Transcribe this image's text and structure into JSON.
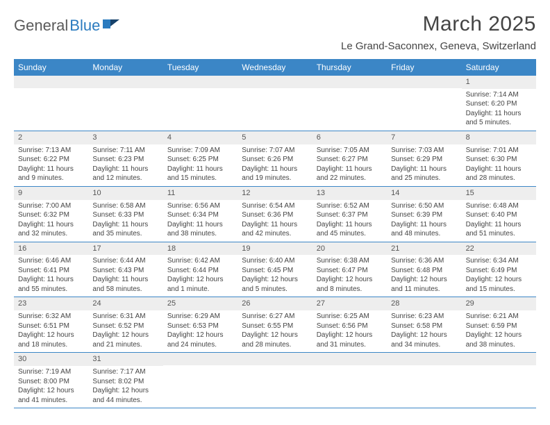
{
  "logo": {
    "text_dark": "General",
    "text_blue": "Blue"
  },
  "title": "March 2025",
  "subtitle": "Le Grand-Saconnex, Geneva, Switzerland",
  "colors": {
    "header_bg": "#3b86c6",
    "header_text": "#ffffff",
    "daynum_bg": "#eeeeee",
    "border": "#3b86c6",
    "text": "#444444",
    "logo_dark": "#5a5a5a",
    "logo_blue": "#2b7bbf"
  },
  "weekdays": [
    "Sunday",
    "Monday",
    "Tuesday",
    "Wednesday",
    "Thursday",
    "Friday",
    "Saturday"
  ],
  "weeks": [
    [
      {
        "n": "",
        "sr": "",
        "ss": "",
        "dl": ""
      },
      {
        "n": "",
        "sr": "",
        "ss": "",
        "dl": ""
      },
      {
        "n": "",
        "sr": "",
        "ss": "",
        "dl": ""
      },
      {
        "n": "",
        "sr": "",
        "ss": "",
        "dl": ""
      },
      {
        "n": "",
        "sr": "",
        "ss": "",
        "dl": ""
      },
      {
        "n": "",
        "sr": "",
        "ss": "",
        "dl": ""
      },
      {
        "n": "1",
        "sr": "Sunrise: 7:14 AM",
        "ss": "Sunset: 6:20 PM",
        "dl": "Daylight: 11 hours and 5 minutes."
      }
    ],
    [
      {
        "n": "2",
        "sr": "Sunrise: 7:13 AM",
        "ss": "Sunset: 6:22 PM",
        "dl": "Daylight: 11 hours and 9 minutes."
      },
      {
        "n": "3",
        "sr": "Sunrise: 7:11 AM",
        "ss": "Sunset: 6:23 PM",
        "dl": "Daylight: 11 hours and 12 minutes."
      },
      {
        "n": "4",
        "sr": "Sunrise: 7:09 AM",
        "ss": "Sunset: 6:25 PM",
        "dl": "Daylight: 11 hours and 15 minutes."
      },
      {
        "n": "5",
        "sr": "Sunrise: 7:07 AM",
        "ss": "Sunset: 6:26 PM",
        "dl": "Daylight: 11 hours and 19 minutes."
      },
      {
        "n": "6",
        "sr": "Sunrise: 7:05 AM",
        "ss": "Sunset: 6:27 PM",
        "dl": "Daylight: 11 hours and 22 minutes."
      },
      {
        "n": "7",
        "sr": "Sunrise: 7:03 AM",
        "ss": "Sunset: 6:29 PM",
        "dl": "Daylight: 11 hours and 25 minutes."
      },
      {
        "n": "8",
        "sr": "Sunrise: 7:01 AM",
        "ss": "Sunset: 6:30 PM",
        "dl": "Daylight: 11 hours and 28 minutes."
      }
    ],
    [
      {
        "n": "9",
        "sr": "Sunrise: 7:00 AM",
        "ss": "Sunset: 6:32 PM",
        "dl": "Daylight: 11 hours and 32 minutes."
      },
      {
        "n": "10",
        "sr": "Sunrise: 6:58 AM",
        "ss": "Sunset: 6:33 PM",
        "dl": "Daylight: 11 hours and 35 minutes."
      },
      {
        "n": "11",
        "sr": "Sunrise: 6:56 AM",
        "ss": "Sunset: 6:34 PM",
        "dl": "Daylight: 11 hours and 38 minutes."
      },
      {
        "n": "12",
        "sr": "Sunrise: 6:54 AM",
        "ss": "Sunset: 6:36 PM",
        "dl": "Daylight: 11 hours and 42 minutes."
      },
      {
        "n": "13",
        "sr": "Sunrise: 6:52 AM",
        "ss": "Sunset: 6:37 PM",
        "dl": "Daylight: 11 hours and 45 minutes."
      },
      {
        "n": "14",
        "sr": "Sunrise: 6:50 AM",
        "ss": "Sunset: 6:39 PM",
        "dl": "Daylight: 11 hours and 48 minutes."
      },
      {
        "n": "15",
        "sr": "Sunrise: 6:48 AM",
        "ss": "Sunset: 6:40 PM",
        "dl": "Daylight: 11 hours and 51 minutes."
      }
    ],
    [
      {
        "n": "16",
        "sr": "Sunrise: 6:46 AM",
        "ss": "Sunset: 6:41 PM",
        "dl": "Daylight: 11 hours and 55 minutes."
      },
      {
        "n": "17",
        "sr": "Sunrise: 6:44 AM",
        "ss": "Sunset: 6:43 PM",
        "dl": "Daylight: 11 hours and 58 minutes."
      },
      {
        "n": "18",
        "sr": "Sunrise: 6:42 AM",
        "ss": "Sunset: 6:44 PM",
        "dl": "Daylight: 12 hours and 1 minute."
      },
      {
        "n": "19",
        "sr": "Sunrise: 6:40 AM",
        "ss": "Sunset: 6:45 PM",
        "dl": "Daylight: 12 hours and 5 minutes."
      },
      {
        "n": "20",
        "sr": "Sunrise: 6:38 AM",
        "ss": "Sunset: 6:47 PM",
        "dl": "Daylight: 12 hours and 8 minutes."
      },
      {
        "n": "21",
        "sr": "Sunrise: 6:36 AM",
        "ss": "Sunset: 6:48 PM",
        "dl": "Daylight: 12 hours and 11 minutes."
      },
      {
        "n": "22",
        "sr": "Sunrise: 6:34 AM",
        "ss": "Sunset: 6:49 PM",
        "dl": "Daylight: 12 hours and 15 minutes."
      }
    ],
    [
      {
        "n": "23",
        "sr": "Sunrise: 6:32 AM",
        "ss": "Sunset: 6:51 PM",
        "dl": "Daylight: 12 hours and 18 minutes."
      },
      {
        "n": "24",
        "sr": "Sunrise: 6:31 AM",
        "ss": "Sunset: 6:52 PM",
        "dl": "Daylight: 12 hours and 21 minutes."
      },
      {
        "n": "25",
        "sr": "Sunrise: 6:29 AM",
        "ss": "Sunset: 6:53 PM",
        "dl": "Daylight: 12 hours and 24 minutes."
      },
      {
        "n": "26",
        "sr": "Sunrise: 6:27 AM",
        "ss": "Sunset: 6:55 PM",
        "dl": "Daylight: 12 hours and 28 minutes."
      },
      {
        "n": "27",
        "sr": "Sunrise: 6:25 AM",
        "ss": "Sunset: 6:56 PM",
        "dl": "Daylight: 12 hours and 31 minutes."
      },
      {
        "n": "28",
        "sr": "Sunrise: 6:23 AM",
        "ss": "Sunset: 6:58 PM",
        "dl": "Daylight: 12 hours and 34 minutes."
      },
      {
        "n": "29",
        "sr": "Sunrise: 6:21 AM",
        "ss": "Sunset: 6:59 PM",
        "dl": "Daylight: 12 hours and 38 minutes."
      }
    ],
    [
      {
        "n": "30",
        "sr": "Sunrise: 7:19 AM",
        "ss": "Sunset: 8:00 PM",
        "dl": "Daylight: 12 hours and 41 minutes."
      },
      {
        "n": "31",
        "sr": "Sunrise: 7:17 AM",
        "ss": "Sunset: 8:02 PM",
        "dl": "Daylight: 12 hours and 44 minutes."
      },
      {
        "n": "",
        "sr": "",
        "ss": "",
        "dl": ""
      },
      {
        "n": "",
        "sr": "",
        "ss": "",
        "dl": ""
      },
      {
        "n": "",
        "sr": "",
        "ss": "",
        "dl": ""
      },
      {
        "n": "",
        "sr": "",
        "ss": "",
        "dl": ""
      },
      {
        "n": "",
        "sr": "",
        "ss": "",
        "dl": ""
      }
    ]
  ]
}
